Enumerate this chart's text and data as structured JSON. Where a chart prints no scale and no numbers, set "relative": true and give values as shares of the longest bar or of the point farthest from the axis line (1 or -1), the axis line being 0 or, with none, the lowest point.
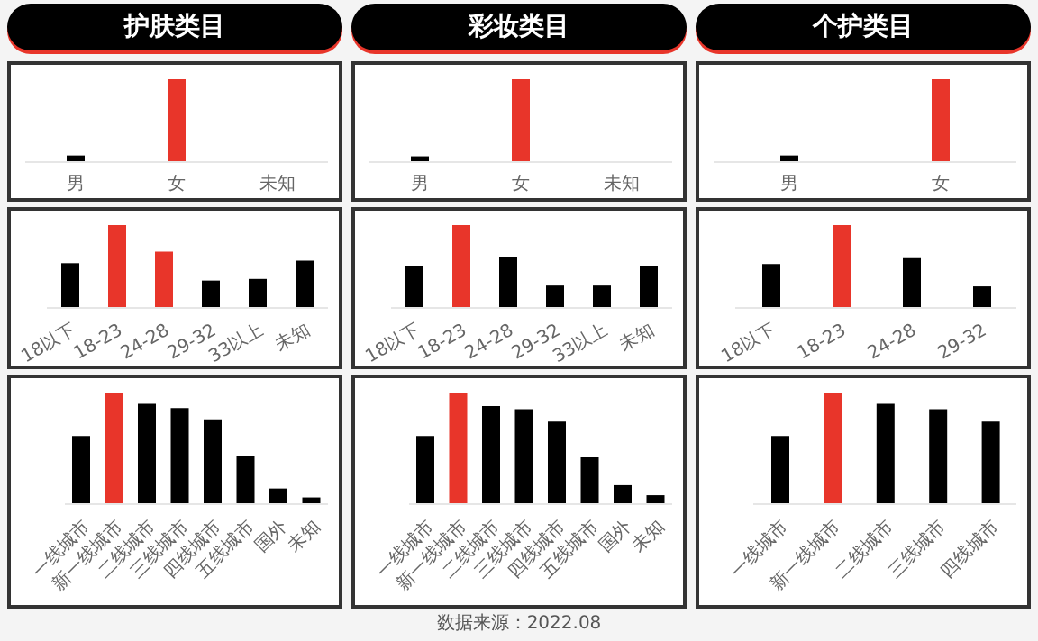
{
  "chart_data": [
    {
      "type": "bar",
      "relative": true,
      "title": "护肤类目",
      "categories": [
        "男",
        "女",
        "未知"
      ],
      "values": [
        0.08,
        1,
        0
      ],
      "colors": [
        "#000000",
        "#e8352a",
        "#000000"
      ]
    },
    {
      "type": "bar",
      "relative": true,
      "title": "彩妆类目",
      "categories": [
        "男",
        "女",
        "未知"
      ],
      "values": [
        0.07,
        1,
        0
      ],
      "colors": [
        "#000000",
        "#e8352a",
        "#000000"
      ]
    },
    {
      "type": "bar",
      "relative": true,
      "title": "个护类目",
      "categories": [
        "男",
        "女"
      ],
      "values": [
        0.08,
        1
      ],
      "colors": [
        "#000000",
        "#e8352a"
      ]
    },
    {
      "type": "bar",
      "relative": true,
      "categories": [
        "18以下",
        "18-23",
        "24-28",
        "29-32",
        "33以上",
        "未知"
      ],
      "values": [
        0.54,
        1,
        0.68,
        0.33,
        0.35,
        0.57
      ],
      "colors": [
        "#000000",
        "#e8352a",
        "#e8352a",
        "#000000",
        "#000000",
        "#000000"
      ]
    },
    {
      "type": "bar",
      "relative": true,
      "categories": [
        "18以下",
        "18-23",
        "24-28",
        "29-32",
        "33以上",
        "未知"
      ],
      "values": [
        0.5,
        1,
        0.62,
        0.27,
        0.27,
        0.51
      ],
      "colors": [
        "#000000",
        "#e8352a",
        "#000000",
        "#000000",
        "#000000",
        "#000000"
      ]
    },
    {
      "type": "bar",
      "relative": true,
      "categories": [
        "18以下",
        "18-23",
        "24-28",
        "29-32"
      ],
      "values": [
        0.53,
        1,
        0.6,
        0.26
      ],
      "colors": [
        "#000000",
        "#e8352a",
        "#000000",
        "#000000"
      ]
    },
    {
      "type": "bar",
      "relative": true,
      "categories": [
        "一线城市",
        "新一线城市",
        "二线城市",
        "三线城市",
        "四线城市",
        "五线城市",
        "国外",
        "未知"
      ],
      "values": [
        0.61,
        1,
        0.9,
        0.86,
        0.76,
        0.43,
        0.14,
        0.06
      ],
      "colors": [
        "#000000",
        "#e8352a",
        "#000000",
        "#000000",
        "#000000",
        "#000000",
        "#000000",
        "#000000"
      ]
    },
    {
      "type": "bar",
      "relative": true,
      "categories": [
        "一线城市",
        "新一线城市",
        "二线城市",
        "三线城市",
        "四线城市",
        "五线城市",
        "国外",
        "未知"
      ],
      "values": [
        0.61,
        1,
        0.88,
        0.85,
        0.74,
        0.42,
        0.17,
        0.08
      ],
      "colors": [
        "#000000",
        "#e8352a",
        "#000000",
        "#000000",
        "#000000",
        "#000000",
        "#000000",
        "#000000"
      ]
    },
    {
      "type": "bar",
      "relative": true,
      "categories": [
        "一线城市",
        "新一线城市",
        "二线城市",
        "三线城市",
        "四线城市"
      ],
      "values": [
        0.61,
        1,
        0.9,
        0.85,
        0.74
      ],
      "colors": [
        "#000000",
        "#e8352a",
        "#000000",
        "#000000",
        "#000000"
      ],
      "annotations": [
        "数据来源：2022.08"
      ]
    }
  ]
}
